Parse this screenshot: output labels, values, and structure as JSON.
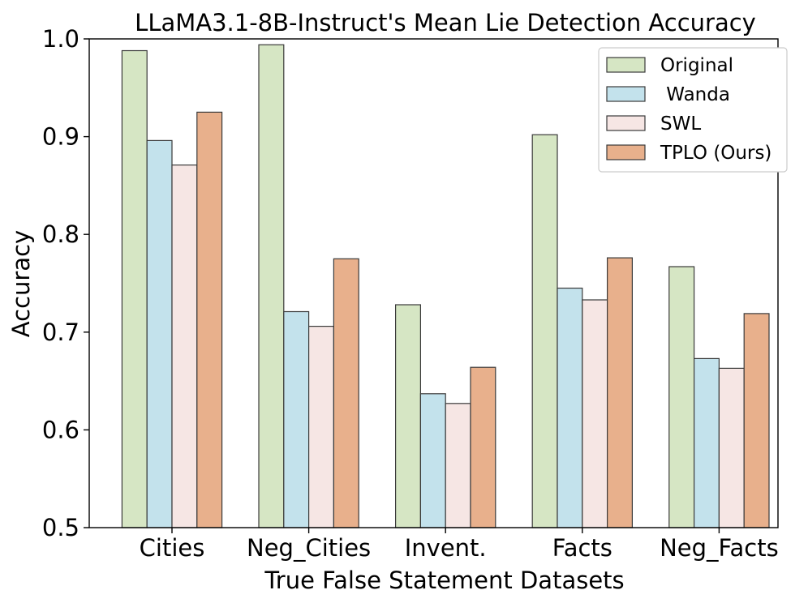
{
  "chart_data": {
    "type": "bar",
    "title": "LLaMA3.1-8B-Instruct's Mean Lie Detection Accuracy",
    "xlabel": "True False Statement Datasets",
    "ylabel": "Accuracy",
    "ylim": [
      0.5,
      1.0
    ],
    "yticks": [
      "0.5",
      "0.6",
      "0.7",
      "0.8",
      "0.9",
      "1.0"
    ],
    "categories": [
      "Cities",
      "Neg_Cities",
      "Invent.",
      "Facts",
      "Neg_Facts"
    ],
    "series": [
      {
        "name": "Original",
        "color": "#d6e6c4",
        "values": [
          0.988,
          0.994,
          0.728,
          0.902,
          0.767
        ]
      },
      {
        "name": " Wanda",
        "color": "#c3e2ec",
        "values": [
          0.896,
          0.721,
          0.637,
          0.745,
          0.673
        ]
      },
      {
        "name": "SWL",
        "color": "#f6e6e4",
        "values": [
          0.871,
          0.706,
          0.627,
          0.733,
          0.663
        ]
      },
      {
        "name": "TPLO (Ours)",
        "color": "#e8b08c",
        "values": [
          0.925,
          0.775,
          0.664,
          0.776,
          0.719
        ]
      }
    ],
    "grid": false,
    "legend_position": "top-right"
  }
}
